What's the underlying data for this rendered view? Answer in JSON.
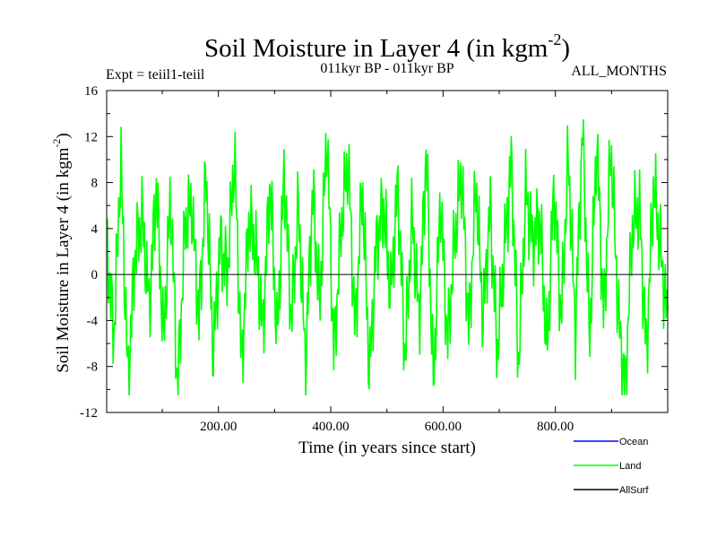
{
  "header": {
    "title": "Soil Moisture in Layer 4 (in kgm",
    "title_sup": "-2",
    "title_close": ")",
    "expt": "Expt = teiil1-teiil",
    "period": "011kyr BP - 011kyr BP",
    "months": "ALL_MONTHS"
  },
  "chart_data": {
    "type": "line",
    "xlabel": "Time (in years since start)",
    "ylabel": "Soil Moisture in Layer 4 (in kgm",
    "ylabel_sup": "-2",
    "ylabel_close": ")",
    "xlim": [
      1,
      1000
    ],
    "ylim": [
      -12,
      16
    ],
    "x_ticks": [
      200,
      400,
      600,
      800
    ],
    "x_tick_labels": [
      "200.00",
      "400.00",
      "600.00",
      "800.00"
    ],
    "y_ticks": [
      -12,
      -8,
      -4,
      0,
      4,
      8,
      12,
      16
    ],
    "y_tick_labels": [
      "-12",
      "-8",
      "-4",
      "0",
      "4",
      "8",
      "12",
      "16"
    ],
    "zero_line": true,
    "legend_position": "bottom-right, below plot",
    "series": [
      {
        "name": "Ocean",
        "color": "#0000ff",
        "values": []
      },
      {
        "name": "Land",
        "color": "#00ff00",
        "x_start": 1,
        "x_end": 1000,
        "values": [
          3,
          -5.5,
          10,
          -9.5,
          2,
          5,
          -3,
          8,
          -6,
          7,
          -10.2,
          4,
          6,
          -4,
          9,
          -7,
          3,
          0,
          10.5,
          -8.5,
          5,
          2,
          -5,
          8.5,
          -6,
          9,
          -4,
          6,
          -8,
          7.5,
          -3,
          12.6,
          -7,
          4,
          10,
          -5,
          8,
          -9,
          3,
          6,
          -2,
          8,
          -7.5,
          5,
          -4,
          11,
          -10,
          7,
          -6,
          3,
          9,
          -5,
          8,
          -4,
          6,
          -7,
          2,
          10,
          -8,
          7,
          3,
          5,
          -7,
          8,
          -4,
          10.5,
          -5,
          13,
          -6,
          12,
          -4,
          11.3,
          -3,
          -10.2,
          4,
          6,
          -7,
          8,
          2,
          -4
        ]
      },
      {
        "name": "AllSurf",
        "color": "#000000",
        "values": []
      }
    ]
  }
}
